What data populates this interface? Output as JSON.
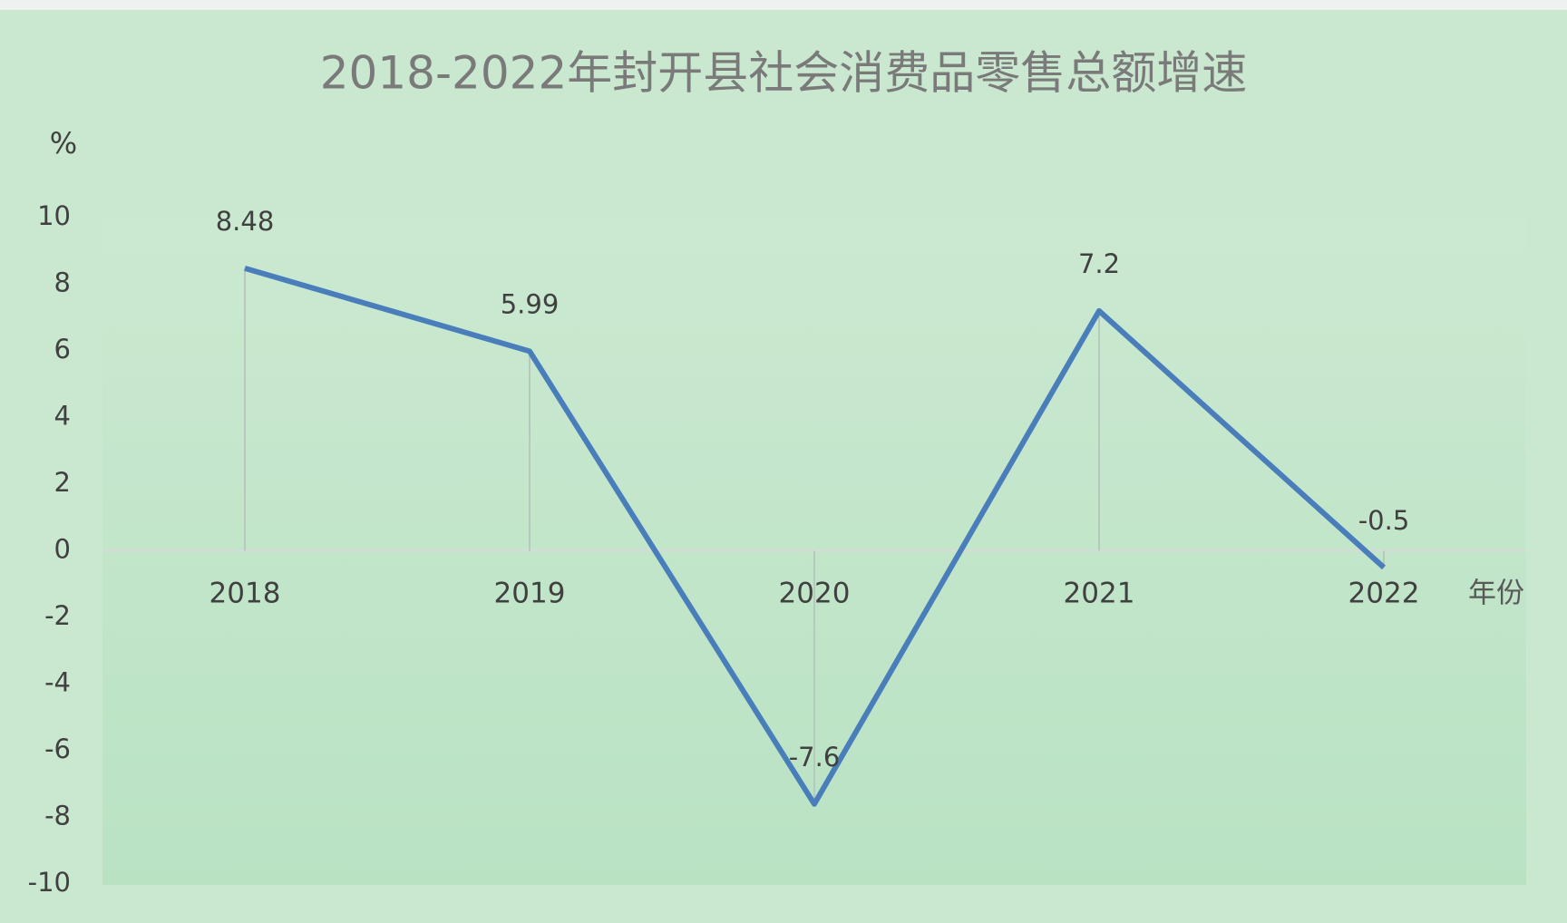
{
  "chart_data": {
    "type": "line",
    "title": "2018-2022年封开县社会消费品零售总额增速",
    "y_label": "%",
    "x_label": "年份",
    "categories": [
      "2018",
      "2019",
      "2020",
      "2021",
      "2022"
    ],
    "series": [
      {
        "name": "社会消费品零售总额增速",
        "color": "#4a7ebb",
        "values": [
          8.48,
          5.99,
          -7.6,
          7.2,
          -0.5
        ]
      }
    ],
    "ylim": [
      -10,
      10
    ],
    "yticks": [
      -10,
      -8,
      -6,
      -4,
      -2,
      0,
      2,
      4,
      6,
      8,
      10
    ],
    "drop_lines": true
  }
}
